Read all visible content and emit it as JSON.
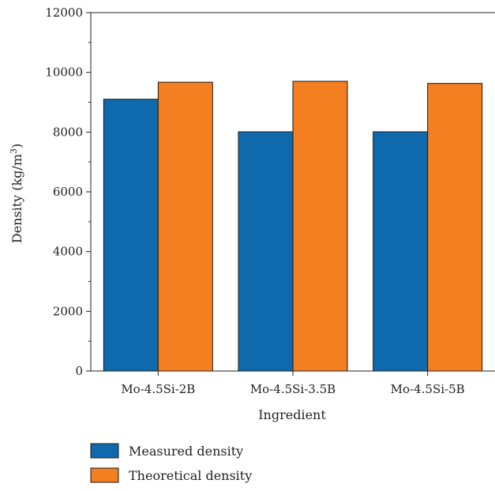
{
  "chart_data": {
    "type": "bar",
    "categories": [
      "Mo-4.5Si-2B",
      "Mo-4.5Si-3.5B",
      "Mo-4.5Si-5B"
    ],
    "series": [
      {
        "name": "Measured density",
        "values": [
          9100,
          8010,
          8010
        ],
        "color": "#0e6aad"
      },
      {
        "name": "Theoretical density",
        "values": [
          9670,
          9700,
          9630
        ],
        "color": "#f47f20"
      }
    ],
    "xlabel": "Ingredient",
    "ylabel": {
      "prefix": "Density (kg/m",
      "superscript": "3",
      "suffix": ")"
    },
    "ylim": [
      0,
      12000
    ],
    "yticks": [
      0,
      2000,
      4000,
      6000,
      8000,
      10000,
      12000
    ],
    "grid": false,
    "legend_position": "bottom-left"
  }
}
